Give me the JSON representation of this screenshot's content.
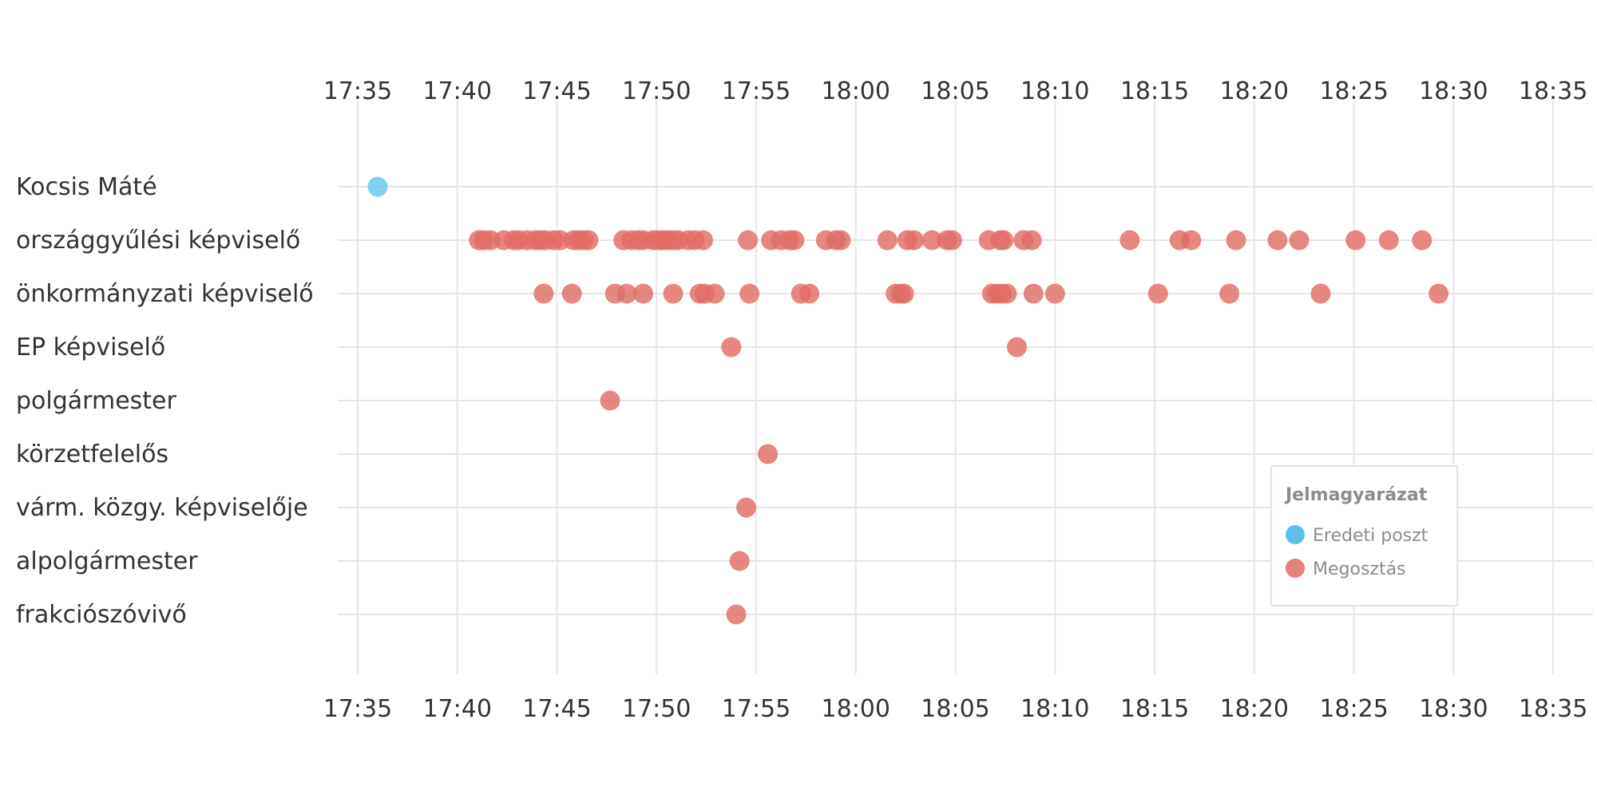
{
  "chart_data": {
    "type": "scatter",
    "x_axis": {
      "ticks": [
        "17:35",
        "17:40",
        "17:45",
        "17:50",
        "17:55",
        "18:00",
        "18:05",
        "18:10",
        "18:15",
        "18:20",
        "18:25",
        "18:30",
        "18:35"
      ],
      "range": [
        "17:34",
        "18:37"
      ],
      "position": "top-and-bottom"
    },
    "categories": [
      "Kocsis Máté",
      "országgyűlési képviselő",
      "önkormányzati képviselő",
      "EP képviselő",
      "polgármester",
      "körzetfelelős",
      "várm. közgy. képviselője",
      "alpolgármester",
      "frakciószóvivő"
    ],
    "grid": true,
    "legend": {
      "title": "Jelmagyarázat",
      "placement": "bottom-right",
      "entries": [
        {
          "label": "Eredeti poszt",
          "color": "#5bc0eb"
        },
        {
          "label": "Megosztás",
          "color": "#e06c66"
        }
      ]
    },
    "series": [
      {
        "name": "Eredeti poszt",
        "color": "#5bc0eb",
        "points": [
          {
            "category": "Kocsis Máté",
            "time": "17:36:00"
          }
        ]
      },
      {
        "name": "Megosztás",
        "color": "#e06c66",
        "points": [
          {
            "category": "országgyűlési képviselő",
            "time": "17:41:05"
          },
          {
            "category": "országgyűlési képviselő",
            "time": "17:41:20"
          },
          {
            "category": "országgyűlési képviselő",
            "time": "17:41:40"
          },
          {
            "category": "országgyűlési képviselő",
            "time": "17:42:20"
          },
          {
            "category": "országgyűlési képviselő",
            "time": "17:42:50"
          },
          {
            "category": "országgyűlési képviselő",
            "time": "17:43:05"
          },
          {
            "category": "országgyűlési képviselő",
            "time": "17:43:30"
          },
          {
            "category": "országgyűlési képviselő",
            "time": "17:43:55"
          },
          {
            "category": "országgyűlési képviselő",
            "time": "17:44:10"
          },
          {
            "category": "országgyűlési képviselő",
            "time": "17:44:25"
          },
          {
            "category": "országgyűlési képviselő",
            "time": "17:44:50"
          },
          {
            "category": "országgyűlési képviselő",
            "time": "17:45:10"
          },
          {
            "category": "országgyűlési képviselő",
            "time": "17:45:50"
          },
          {
            "category": "országgyűlési képviselő",
            "time": "17:46:05"
          },
          {
            "category": "országgyűlési képviselő",
            "time": "17:46:20"
          },
          {
            "category": "országgyűlési képviselő",
            "time": "17:46:35"
          },
          {
            "category": "országgyűlési képviselő",
            "time": "17:48:20"
          },
          {
            "category": "országgyűlési képviselő",
            "time": "17:48:45"
          },
          {
            "category": "országgyűlési képviselő",
            "time": "17:49:05"
          },
          {
            "category": "országgyűlési képviselő",
            "time": "17:49:20"
          },
          {
            "category": "országgyűlési képviselő",
            "time": "17:49:50"
          },
          {
            "category": "országgyűlési képviselő",
            "time": "17:50:05"
          },
          {
            "category": "országgyűlési képviselő",
            "time": "17:50:20"
          },
          {
            "category": "országgyűlési képviselő",
            "time": "17:50:35"
          },
          {
            "category": "országgyűlési képviselő",
            "time": "17:50:50"
          },
          {
            "category": "országgyűlési képviselő",
            "time": "17:51:05"
          },
          {
            "category": "országgyűlési képviselő",
            "time": "17:51:35"
          },
          {
            "category": "országgyűlési képviselő",
            "time": "17:51:55"
          },
          {
            "category": "országgyűlési képviselő",
            "time": "17:52:20"
          },
          {
            "category": "országgyűlési képviselő",
            "time": "17:54:35"
          },
          {
            "category": "országgyűlési képviselő",
            "time": "17:55:45"
          },
          {
            "category": "országgyűlési képviselő",
            "time": "17:56:15"
          },
          {
            "category": "országgyűlési képviselő",
            "time": "17:56:40"
          },
          {
            "category": "országgyűlési képviselő",
            "time": "17:56:55"
          },
          {
            "category": "országgyűlési képviselő",
            "time": "17:58:30"
          },
          {
            "category": "országgyűlési képviselő",
            "time": "17:59:00"
          },
          {
            "category": "országgyűlési képviselő",
            "time": "17:59:15"
          },
          {
            "category": "országgyűlési képviselő",
            "time": "18:01:35"
          },
          {
            "category": "országgyűlési képviselő",
            "time": "18:02:35"
          },
          {
            "category": "országgyűlési képviselő",
            "time": "18:02:55"
          },
          {
            "category": "országgyűlési képviselő",
            "time": "18:03:50"
          },
          {
            "category": "országgyűlési képviselő",
            "time": "18:04:35"
          },
          {
            "category": "országgyűlési képviselő",
            "time": "18:04:50"
          },
          {
            "category": "országgyűlési képviselő",
            "time": "18:06:40"
          },
          {
            "category": "országgyűlési képviselő",
            "time": "18:07:15"
          },
          {
            "category": "országgyűlési képviselő",
            "time": "18:07:25"
          },
          {
            "category": "országgyűlési képviselő",
            "time": "18:08:25"
          },
          {
            "category": "országgyűlési képviselő",
            "time": "18:08:50"
          },
          {
            "category": "országgyűlési képviselő",
            "time": "18:13:45"
          },
          {
            "category": "országgyűlési képviselő",
            "time": "18:16:15"
          },
          {
            "category": "országgyűlési képviselő",
            "time": "18:16:50"
          },
          {
            "category": "országgyűlési képviselő",
            "time": "18:19:05"
          },
          {
            "category": "országgyűlési képviselő",
            "time": "18:21:10"
          },
          {
            "category": "országgyűlési képviselő",
            "time": "18:22:15"
          },
          {
            "category": "országgyűlési képviselő",
            "time": "18:25:05"
          },
          {
            "category": "országgyűlési képviselő",
            "time": "18:26:45"
          },
          {
            "category": "országgyűlési képviselő",
            "time": "18:28:25"
          },
          {
            "category": "önkormányzati képviselő",
            "time": "17:44:20"
          },
          {
            "category": "önkormányzati képviselő",
            "time": "17:45:45"
          },
          {
            "category": "önkormányzati képviselő",
            "time": "17:47:55"
          },
          {
            "category": "önkormányzati képviselő",
            "time": "17:48:30"
          },
          {
            "category": "önkormányzati képviselő",
            "time": "17:49:20"
          },
          {
            "category": "önkormányzati képviselő",
            "time": "17:50:50"
          },
          {
            "category": "önkormányzati képviselő",
            "time": "17:52:10"
          },
          {
            "category": "önkormányzati képviselő",
            "time": "17:52:25"
          },
          {
            "category": "önkormányzati képviselő",
            "time": "17:52:55"
          },
          {
            "category": "önkormányzati képviselő",
            "time": "17:54:40"
          },
          {
            "category": "önkormányzati képviselő",
            "time": "17:57:15"
          },
          {
            "category": "önkormányzati képviselő",
            "time": "17:57:40"
          },
          {
            "category": "önkormányzati képviselő",
            "time": "18:02:00"
          },
          {
            "category": "önkormányzati képviselő",
            "time": "18:02:15"
          },
          {
            "category": "önkormányzati képviselő",
            "time": "18:02:25"
          },
          {
            "category": "önkormányzati képviselő",
            "time": "18:06:50"
          },
          {
            "category": "önkormányzati képviselő",
            "time": "18:07:05"
          },
          {
            "category": "önkormányzati képviselő",
            "time": "18:07:20"
          },
          {
            "category": "önkormányzati képviselő",
            "time": "18:07:35"
          },
          {
            "category": "önkormányzati képviselő",
            "time": "18:08:55"
          },
          {
            "category": "önkormányzati képviselő",
            "time": "18:10:00"
          },
          {
            "category": "önkormányzati képviselő",
            "time": "18:15:10"
          },
          {
            "category": "önkormányzati képviselő",
            "time": "18:18:45"
          },
          {
            "category": "önkormányzati képviselő",
            "time": "18:23:20"
          },
          {
            "category": "önkormányzati képviselő",
            "time": "18:29:15"
          },
          {
            "category": "EP képviselő",
            "time": "17:53:45"
          },
          {
            "category": "EP képviselő",
            "time": "18:08:05"
          },
          {
            "category": "polgármester",
            "time": "17:47:40"
          },
          {
            "category": "körzetfelelős",
            "time": "17:55:35"
          },
          {
            "category": "várm. közgy. képviselője",
            "time": "17:54:30"
          },
          {
            "category": "alpolgármester",
            "time": "17:54:10"
          },
          {
            "category": "frakciószóvivő",
            "time": "17:54:00"
          }
        ]
      }
    ]
  }
}
